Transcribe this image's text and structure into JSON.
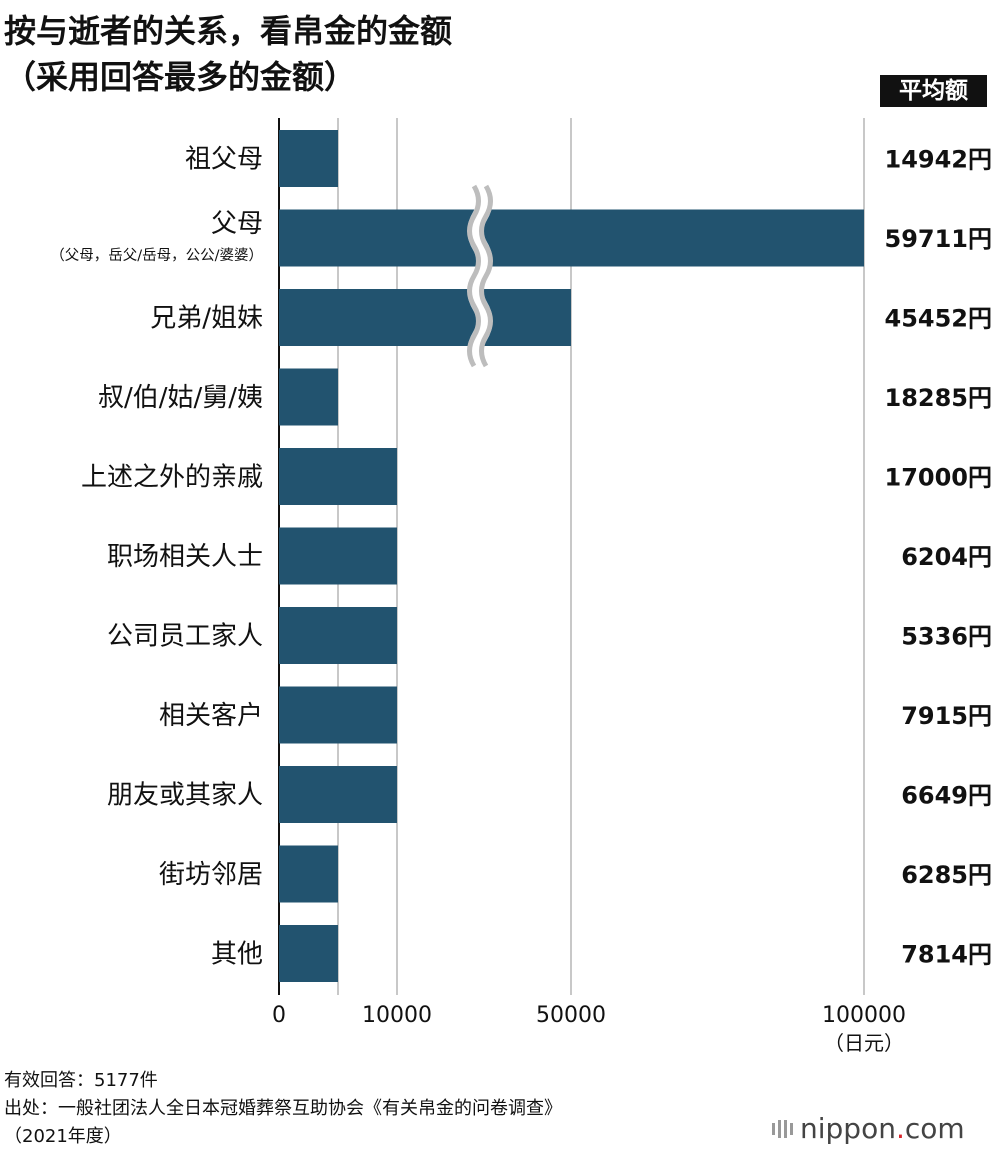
{
  "title": {
    "line1": "按与逝者的关系，看帛金的金额",
    "line2": "（采用回答最多的金额）"
  },
  "avg_header": "平均额",
  "chart_data": {
    "type": "bar",
    "orientation": "horizontal",
    "categories": [
      "祖父母",
      "父母",
      "兄弟/姐妹",
      "叔/伯/姑/舅/姨",
      "上述之外的亲戚",
      "职场相关人士",
      "公司员工家人",
      "相关客户",
      "朋友或其家人",
      "街坊邻居",
      "其他"
    ],
    "category_sublabels": {
      "1": "（父母，岳父/岳母，公公/婆婆）"
    },
    "values": [
      5000,
      100000,
      50000,
      5000,
      10000,
      10000,
      10000,
      10000,
      10000,
      5000,
      5000
    ],
    "averages": [
      "14942円",
      "59711円",
      "45452円",
      "18285円",
      "17000円",
      "6204円",
      "5336円",
      "7915円",
      "6649円",
      "6285円",
      "7814円"
    ],
    "axis_ticks": [
      0,
      10000,
      50000,
      100000
    ],
    "axis_tick_labels": [
      "0",
      "10000",
      "50000",
      "100000"
    ],
    "axis_unit": "（日元）",
    "axis_break": true,
    "bar_color": "#22536f",
    "gridline_color": "#c8c8c8"
  },
  "footer": {
    "responses": "有效回答：5177件",
    "source": "出处：一般社团法人全日本冠婚葬祭互助协会《有关帛金的问卷调查》",
    "year": "（2021年度）"
  },
  "logo": {
    "text": "nippon",
    "dot": ".",
    "suffix": "com"
  }
}
